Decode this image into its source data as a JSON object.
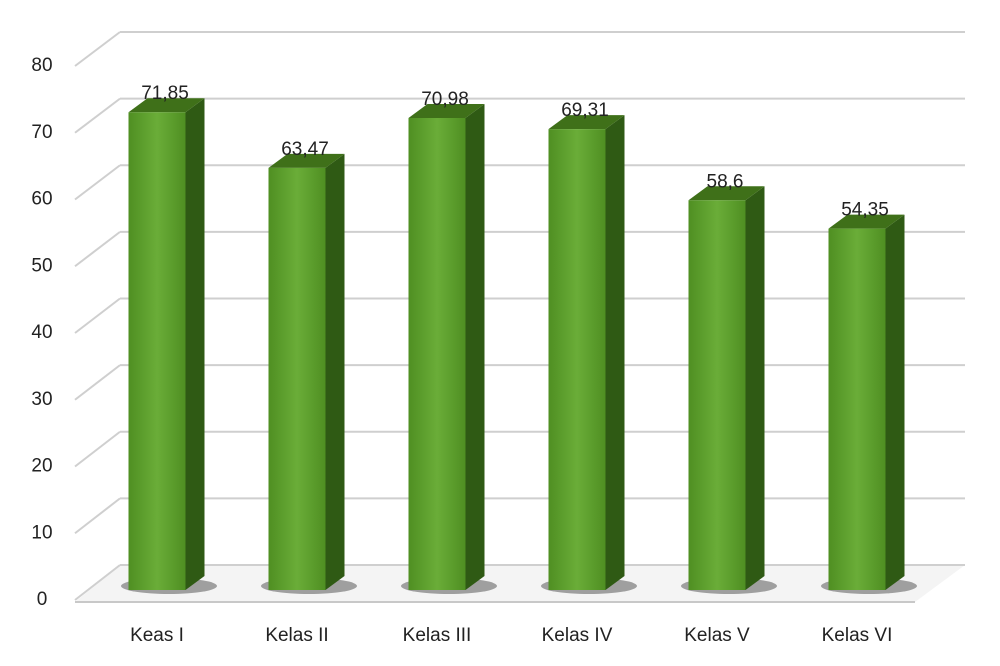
{
  "chart_data": {
    "type": "bar3d",
    "categories": [
      "Keas I",
      "Kelas II",
      "Kelas III",
      "Kelas IV",
      "Kelas V",
      "Kelas VI"
    ],
    "values": [
      71.85,
      63.47,
      70.98,
      69.31,
      58.6,
      54.35
    ],
    "value_labels": [
      "71,85",
      "63,47",
      "70,98",
      "69,31",
      "58,6",
      "54,35"
    ],
    "value_label_colors": [
      "#000000",
      "#000000",
      "#000000",
      "#000000",
      "#000000",
      "#c00000"
    ],
    "color": "#5e9e2e",
    "ylim": [
      0,
      80
    ],
    "yticks": [
      0,
      10,
      20,
      30,
      40,
      50,
      60,
      70,
      80
    ],
    "grid": true
  }
}
